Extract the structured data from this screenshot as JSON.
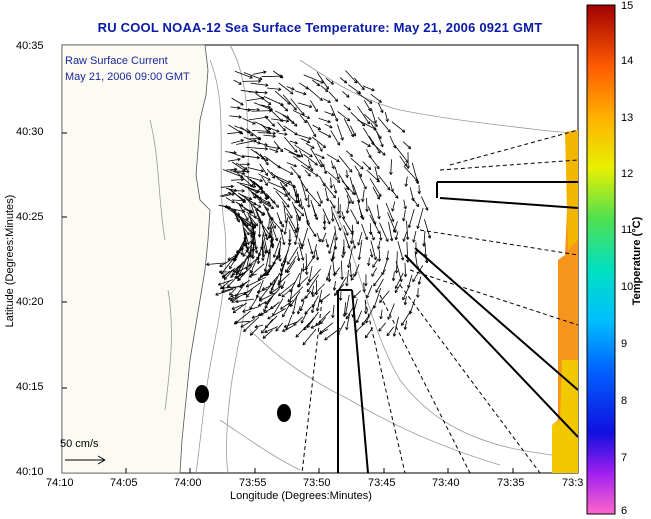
{
  "title": "RU COOL  NOAA-12  Sea Surface Temperature:  May 21, 2006 0921 GMT",
  "legend": {
    "line1": "Raw Surface Current",
    "line2": "May 21, 2006 09:00 GMT",
    "scale_label": "50 cm/s"
  },
  "axes": {
    "xlabel": "Longitude (Degrees:Minutes)",
    "ylabel": "Latitude (Degrees:Minutes)",
    "xticks": [
      "74:10",
      "74:05",
      "74:00",
      "73:55",
      "73:50",
      "73:45",
      "73:40",
      "73:35",
      "73:3"
    ],
    "yticks": [
      "40:35",
      "40:30",
      "40:25",
      "40:20",
      "40:15",
      "40:10"
    ]
  },
  "colorbar": {
    "title": "Temperature (°C)",
    "ticks": [
      "15",
      "14",
      "13",
      "12",
      "11",
      "10",
      "9",
      "8",
      "7",
      "6"
    ],
    "colors": [
      "#ff66cc",
      "#6a0dad",
      "#1010e0",
      "#00bfff",
      "#00e0c0",
      "#50e050",
      "#e8f000",
      "#ffb000",
      "#ff5a00",
      "#b00000"
    ]
  },
  "colors": {
    "title": "#0a1aa8",
    "land": "#fbfaf3",
    "sst_orange": "#f7941d",
    "sst_yellow": "#f2c800"
  }
}
